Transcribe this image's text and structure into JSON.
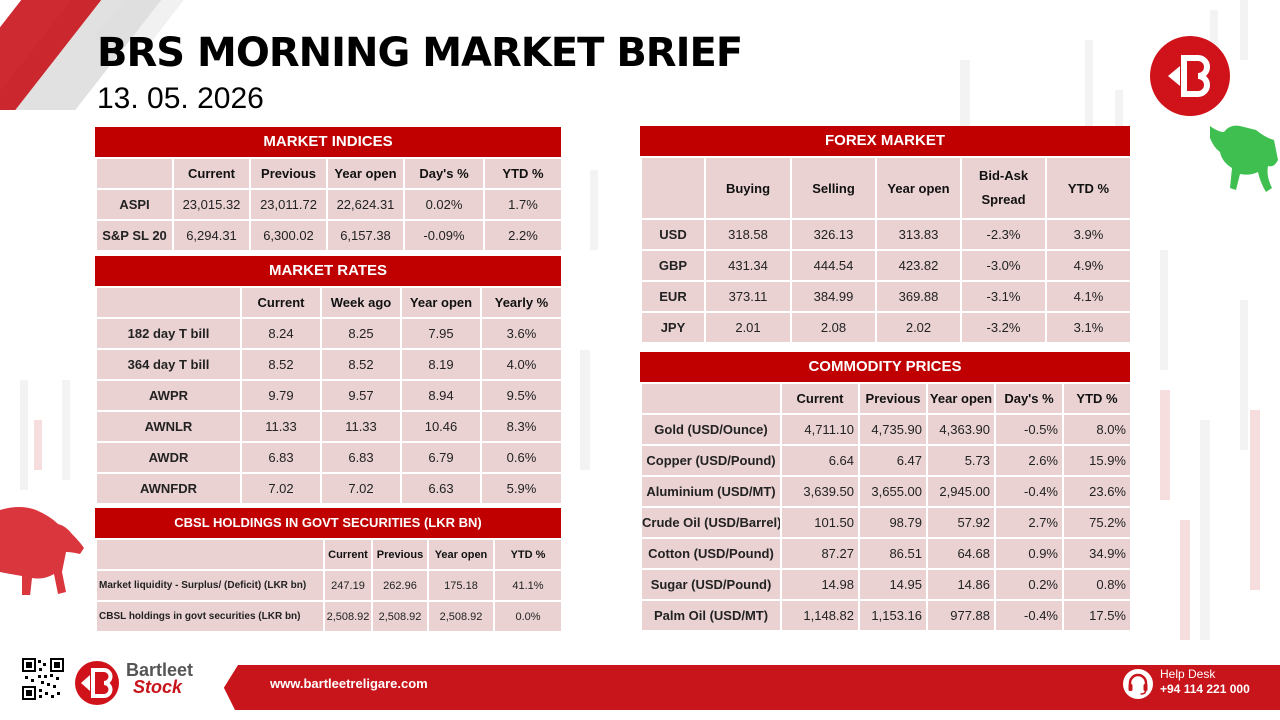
{
  "title": "BRS MORNING MARKET BRIEF",
  "date": "13. 05. 2026",
  "market_indices": {
    "heading": "MARKET INDICES",
    "columns": [
      "",
      "Current",
      "Previous",
      "Year open",
      "Day's %",
      "YTD %"
    ],
    "rows": [
      [
        "ASPI",
        "23,015.32",
        "23,011.72",
        "22,624.31",
        "0.02%",
        "1.7%"
      ],
      [
        "S&P SL 20",
        "6,294.31",
        "6,300.02",
        "6,157.38",
        "-0.09%",
        "2.2%"
      ]
    ]
  },
  "market_rates": {
    "heading": "MARKET RATES",
    "columns": [
      "",
      "Current",
      "Week ago",
      "Year open",
      "Yearly %"
    ],
    "rows": [
      [
        "182 day T bill",
        "8.24",
        "8.25",
        "7.95",
        "3.6%"
      ],
      [
        "364 day T bill",
        "8.52",
        "8.52",
        "8.19",
        "4.0%"
      ],
      [
        "AWPR",
        "9.79",
        "9.57",
        "8.94",
        "9.5%"
      ],
      [
        "AWNLR",
        "11.33",
        "11.33",
        "10.46",
        "8.3%"
      ],
      [
        "AWDR",
        "6.83",
        "6.83",
        "6.79",
        "0.6%"
      ],
      [
        "AWNFDR",
        "7.02",
        "7.02",
        "6.63",
        "5.9%"
      ]
    ]
  },
  "cbsl_holdings": {
    "heading": "CBSL HOLDINGS IN GOVT SECURITIES (LKR BN)",
    "columns": [
      "",
      "Current",
      "Previous",
      "Year open",
      "YTD %"
    ],
    "rows": [
      [
        "Market liquidity - Surplus/ (Deficit) (LKR bn)",
        "247.19",
        "262.96",
        "175.18",
        "41.1%"
      ],
      [
        "CBSL holdings in govt securities (LKR bn)",
        "2,508.92",
        "2,508.92",
        "2,508.92",
        "0.0%"
      ]
    ]
  },
  "forex_market": {
    "heading": "FOREX MARKET",
    "columns": [
      "",
      "Buying",
      "Selling",
      "Year open",
      "Bid-Ask Spread",
      "YTD %"
    ],
    "rows": [
      [
        "USD",
        "318.58",
        "326.13",
        "313.83",
        "-2.3%",
        "3.9%"
      ],
      [
        "GBP",
        "431.34",
        "444.54",
        "423.82",
        "-3.0%",
        "4.9%"
      ],
      [
        "EUR",
        "373.11",
        "384.99",
        "369.88",
        "-3.1%",
        "4.1%"
      ],
      [
        "JPY",
        "2.01",
        "2.08",
        "2.02",
        "-3.2%",
        "3.1%"
      ]
    ]
  },
  "commodity_prices": {
    "heading": "COMMODITY PRICES",
    "columns": [
      "",
      "Current",
      "Previous",
      "Year open",
      "Day's %",
      "YTD %"
    ],
    "rows": [
      [
        "Gold (USD/Ounce)",
        "4,711.10",
        "4,735.90",
        "4,363.90",
        "-0.5%",
        "8.0%"
      ],
      [
        "Copper (USD/Pound)",
        "6.64",
        "6.47",
        "5.73",
        "2.6%",
        "15.9%"
      ],
      [
        "Aluminium (USD/MT)",
        "3,639.50",
        "3,655.00",
        "2,945.00",
        "-0.4%",
        "23.6%"
      ],
      [
        "Crude Oil (USD/Barrel)",
        "101.50",
        "98.79",
        "57.92",
        "2.7%",
        "75.2%"
      ],
      [
        "Cotton (USD/Pound)",
        "87.27",
        "86.51",
        "64.68",
        "0.9%",
        "34.9%"
      ],
      [
        "Sugar (USD/Pound)",
        "14.98",
        "14.95",
        "14.86",
        "0.2%",
        "0.8%"
      ],
      [
        "Palm Oil (USD/MT)",
        "1,148.82",
        "1,153.16",
        "977.88",
        "-0.4%",
        "17.5%"
      ]
    ]
  },
  "footer": {
    "website": "www.bartleetreligare.com",
    "helpdesk_label": "Help Desk",
    "helpdesk_phone": "+94 114 221 000",
    "brand_name": "Bartleet",
    "brand_sub": "Stock"
  },
  "colors": {
    "header_red": "#c00000",
    "cell_pink": "#ead2d3",
    "brand_red": "#d0131a"
  },
  "icons": [
    "b-logo-icon",
    "bull-icon",
    "bear-icon",
    "qr-code-icon",
    "headset-icon"
  ]
}
